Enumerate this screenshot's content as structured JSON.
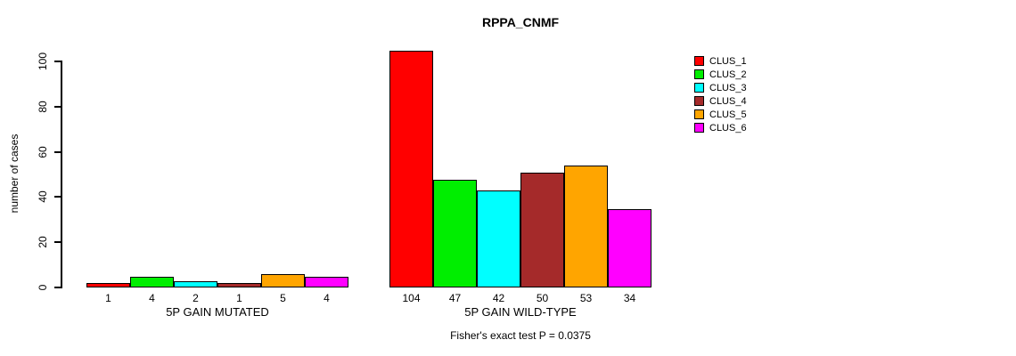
{
  "chart_data": {
    "type": "bar",
    "title": "RPPA_CNMF",
    "xlabel": "",
    "ylabel": "number of cases",
    "ylim": [
      0,
      110
    ],
    "yticks": [
      0,
      20,
      40,
      60,
      80,
      100
    ],
    "grid": false,
    "legend_position": "right-top",
    "categories": [
      "5P GAIN MUTATED",
      "5P GAIN WILD-TYPE"
    ],
    "series": [
      {
        "name": "CLUS_1",
        "color": "#FF0000",
        "values": [
          1,
          104
        ]
      },
      {
        "name": "CLUS_2",
        "color": "#00EE00",
        "values": [
          4,
          47
        ]
      },
      {
        "name": "CLUS_3",
        "color": "#00FFFF",
        "values": [
          2,
          42
        ]
      },
      {
        "name": "CLUS_4",
        "color": "#A52A2A",
        "values": [
          1,
          50
        ]
      },
      {
        "name": "CLUS_5",
        "color": "#FFA500",
        "values": [
          5,
          53
        ]
      },
      {
        "name": "CLUS_6",
        "color": "#FF00FF",
        "values": [
          4,
          34
        ]
      }
    ],
    "bar_value_labels": [
      [
        "1",
        "4",
        "2",
        "1",
        "5",
        "4"
      ],
      [
        "104",
        "47",
        "42",
        "50",
        "53",
        "34"
      ]
    ],
    "annotation": "Fisher's exact test P = 0.0375"
  }
}
